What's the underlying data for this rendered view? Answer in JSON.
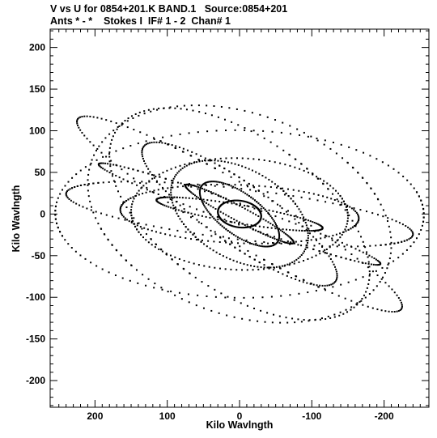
{
  "chart_data": {
    "type": "scatter",
    "title": "V vs U for 0854+201.K BAND.1   Source:0854+201",
    "subtitle": "Ants * - *    Stokes I  IF# 1 - 2  Chan# 1",
    "xlabel": "Kilo Wavlngth",
    "ylabel": "Kilo Wavlngth",
    "xlim": [
      262,
      -262
    ],
    "ylim": [
      -232,
      222
    ],
    "xticks": [
      200,
      100,
      0,
      -100,
      -200
    ],
    "xtick_labels": [
      "200",
      "100",
      "0",
      "-100",
      "-200"
    ],
    "yticks": [
      200,
      150,
      100,
      50,
      0,
      -50,
      -100,
      -150,
      -200
    ],
    "ytick_labels": [
      "200",
      "150",
      "100",
      "50",
      "0",
      "-50",
      "-100",
      "-150",
      "-200"
    ],
    "grid": false,
    "point_color": "#000000",
    "pattern": {
      "description": "symmetric uv coverage: arcs sampled at hour angles",
      "baselines": [
        {
          "L": 30,
          "phi": 0.4
        },
        {
          "L": 55,
          "phi": 1.2
        },
        {
          "L": 75,
          "phi": 2.0
        },
        {
          "L": 95,
          "phi": 0.8
        },
        {
          "L": 115,
          "phi": 2.6
        },
        {
          "L": 135,
          "phi": 1.6
        },
        {
          "L": 150,
          "phi": 0.2
        },
        {
          "L": 165,
          "phi": 2.9
        },
        {
          "L": 180,
          "phi": 1.0
        },
        {
          "L": 195,
          "phi": 2.3
        },
        {
          "L": 210,
          "phi": 0.6
        },
        {
          "L": 225,
          "phi": 1.9
        },
        {
          "L": 240,
          "phi": 2.7
        },
        {
          "L": 255,
          "phi": 0.1
        }
      ],
      "dec_sin": 0.34,
      "hour_angle_range": [
        -1.75,
        1.75
      ],
      "samples_per_arc": 70
    }
  }
}
